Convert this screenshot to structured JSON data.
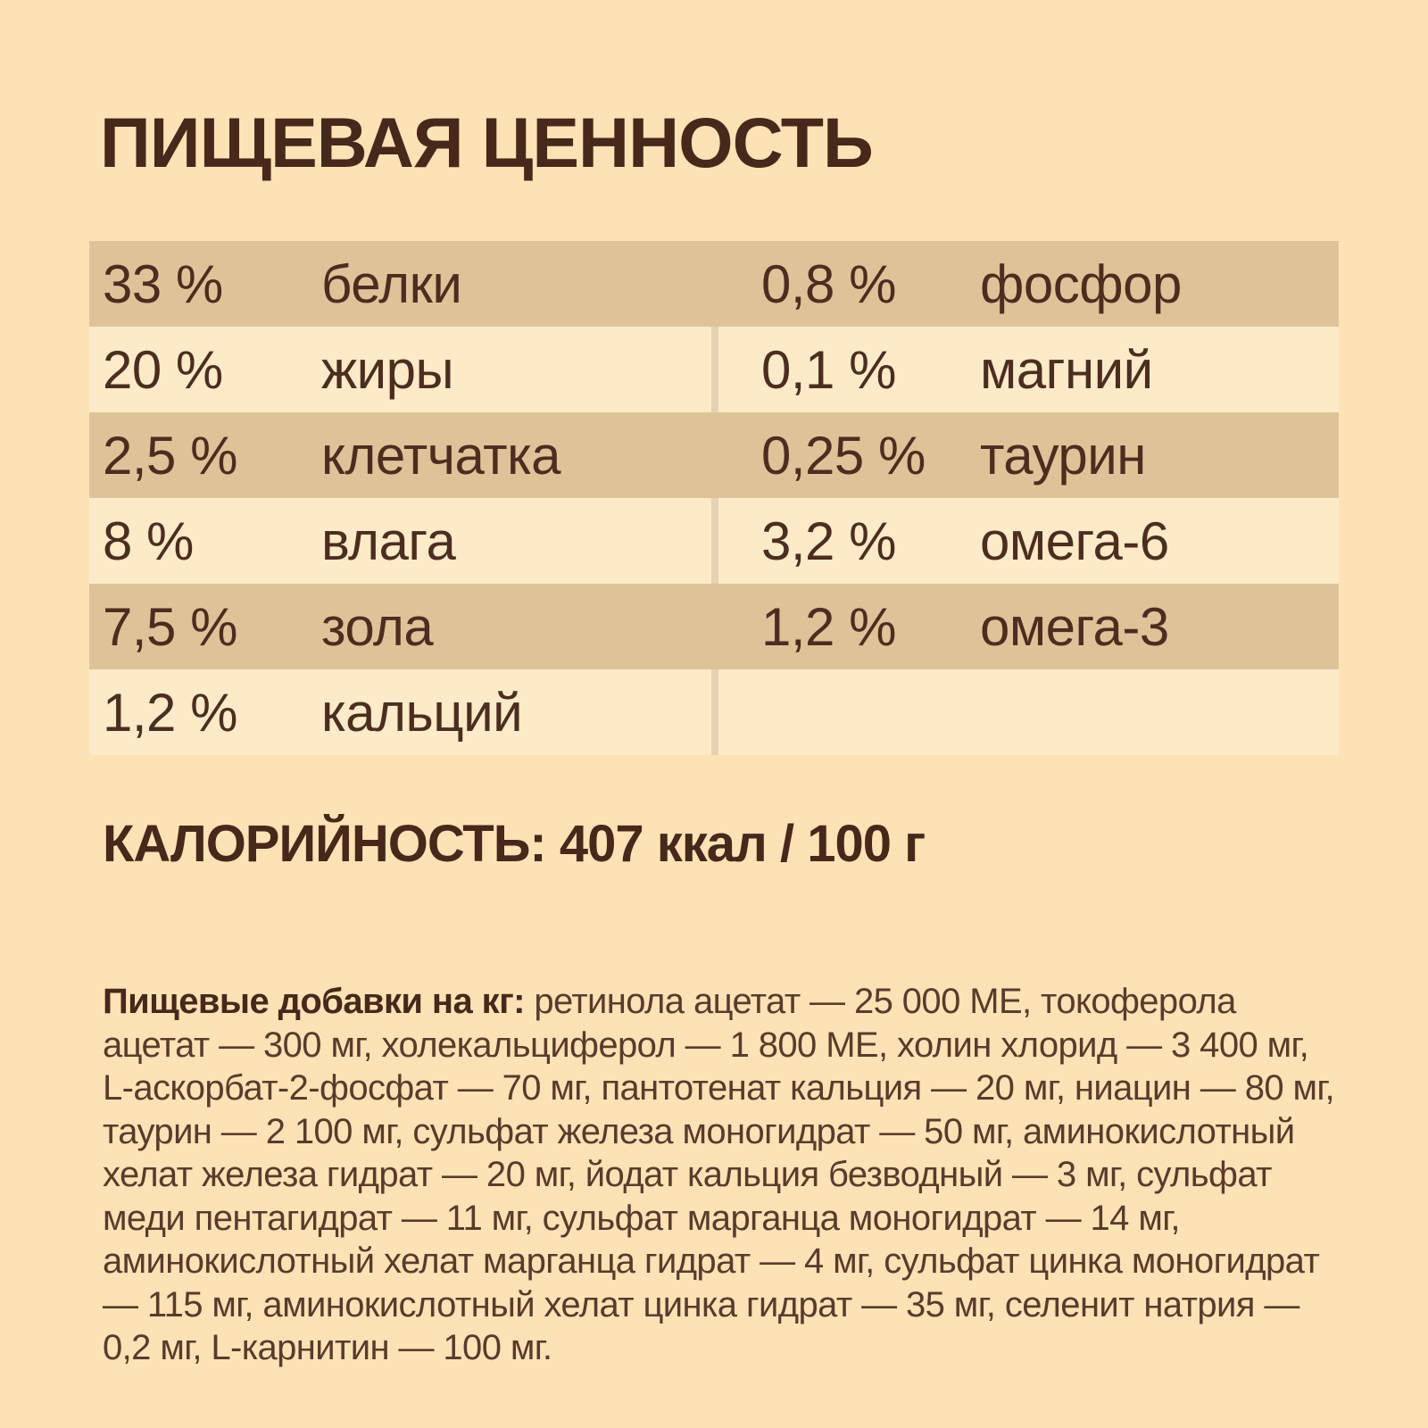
{
  "palette": {
    "page-bg": "#FCE3B6",
    "row-dark": "#DEC399",
    "divider-color": "#D6BC94",
    "title-color": "#47291B",
    "table-text": "#4B2E1F",
    "para-color": "#5A3B2B"
  },
  "title": "ПИЩЕВАЯ ЦЕННОСТЬ",
  "table": {
    "rows": [
      {
        "left_value": "33 %",
        "left_label": "белки",
        "right_value": "0,8 %",
        "right_label": "фосфор"
      },
      {
        "left_value": "20 %",
        "left_label": "жиры",
        "right_value": "0,1 %",
        "right_label": "магний"
      },
      {
        "left_value": "2,5 %",
        "left_label": "клетчатка",
        "right_value": "0,25 %",
        "right_label": "таурин"
      },
      {
        "left_value": "8 %",
        "left_label": "влага",
        "right_value": "3,2 %",
        "right_label": "омега-6"
      },
      {
        "left_value": "7,5 %",
        "left_label": "зола",
        "right_value": "1,2 %",
        "right_label": "омега-3"
      },
      {
        "left_value": "1,2 %",
        "left_label": "кальций",
        "right_value": "",
        "right_label": ""
      }
    ]
  },
  "calories_line": "КАЛОРИЙНОСТЬ: 407 ккал / 100 г",
  "additives": {
    "lead": "Пищевые добавки на кг:",
    "text": "ретинола ацетат — 25 000 МЕ, токоферола ацетат — 300 мг, холекальциферол — 1 800 МЕ, холин хлорид — 3 400 мг, L-аскорбат-2-фосфат — 70 мг, пантотенат кальция — 20 мг, ниацин — 80 мг, таурин — 2 100 мг, сульфат железа моногидрат — 50 мг, аминокислотный хелат железа гидрат — 20 мг, йодат кальция безводный — 3 мг, сульфат меди пентагидрат — 11 мг, сульфат марганца моногидрат — 14 мг, аминокислотный хелат марганца гидрат — 4 мг, сульфат цинка моногидрат — 115 мг, аминокислотный хелат цинка гидрат — 35 мг, селенит натрия — 0,2 мг, L-карнитин — 100 мг."
  }
}
